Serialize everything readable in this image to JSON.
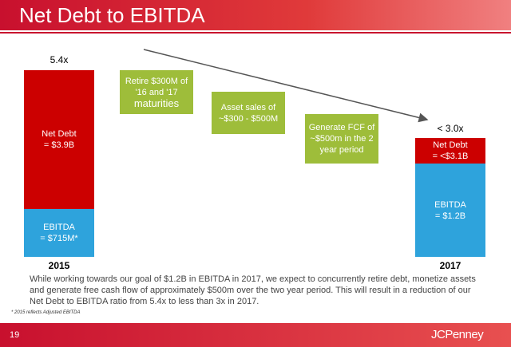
{
  "header": {
    "title": "Net Debt to EBITDA"
  },
  "bars": [
    {
      "ratio": "5.4x",
      "year": "2015",
      "net_debt": [
        "Net Debt",
        "= $3.9B"
      ],
      "ebitda": [
        "EBITDA",
        "= $715M*"
      ]
    },
    {
      "ratio": "< 3.0x",
      "year": "2017",
      "net_debt": [
        "Net Debt",
        "= <$3.1B"
      ],
      "ebitda": [
        "EBITDA",
        "= $1.2B"
      ]
    }
  ],
  "steps": [
    [
      "Retire $300M of",
      "'16 and '17",
      "maturities"
    ],
    [
      "Asset sales of",
      "~$300 - $500M"
    ],
    [
      "Generate FCF of",
      "~$500m in the 2",
      "year period"
    ]
  ],
  "body": "While working towards our goal of $1.2B in EBITDA in 2017, we expect to concurrently retire debt, monetize assets and generate free cash flow of approximately $500m over the two year period. This will result in a reduction of our Net Debt to EBITDA ratio from 5.4x to less than 3x in 2017.",
  "footnote": "* 2015 reflects Adjusted EBITDA",
  "footer": {
    "page": "19",
    "brand": "JCPenney"
  }
}
